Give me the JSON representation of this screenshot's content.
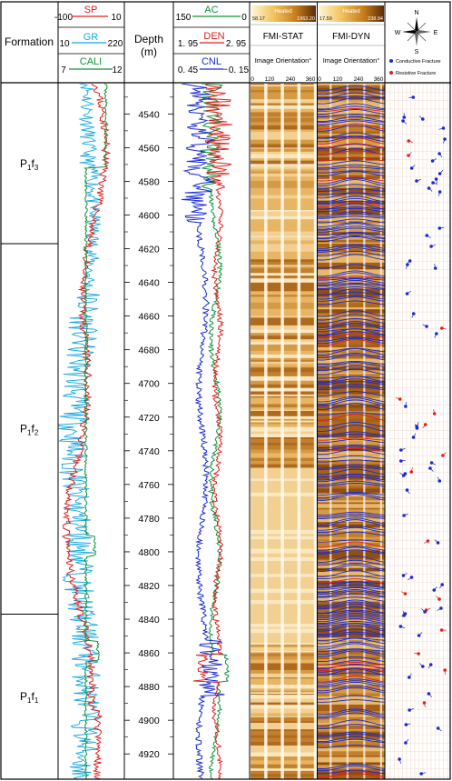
{
  "columns": {
    "formation_header": "Formation",
    "depth_header": "Depth\n(m)",
    "fmi_stat_title": "FMI-STAT",
    "fmi_dyn_title": "FMI-DYN",
    "image_orientation_label": "Image Orientation°",
    "orientation_ticks": [
      "0",
      "120",
      "240",
      "360"
    ]
  },
  "formations": [
    {
      "label_main": "P",
      "label_sub1": "1",
      "label_mid": "f",
      "label_sub2": "3",
      "top_depth": 4522,
      "bottom_depth": 4617
    },
    {
      "label_main": "P",
      "label_sub1": "1",
      "label_mid": "f",
      "label_sub2": "2",
      "top_depth": 4617,
      "bottom_depth": 4837
    },
    {
      "label_main": "P",
      "label_sub1": "1",
      "label_mid": "f",
      "label_sub2": "1",
      "top_depth": 4837,
      "bottom_depth": 4935
    }
  ],
  "track1_curves": [
    {
      "name": "SP",
      "left": "-100",
      "right": "10",
      "color": "#e0201b"
    },
    {
      "name": "GR",
      "left": "10",
      "right": "220",
      "color": "#19a8e0"
    },
    {
      "name": "CALI",
      "left": "7",
      "right": "12",
      "color": "#10913a"
    }
  ],
  "track2_curves": [
    {
      "name": "AC",
      "left": "150",
      "right": "0",
      "color": "#10913a"
    },
    {
      "name": "DEN",
      "left": "1. 95",
      "right": "2. 95",
      "color": "#e0201b"
    },
    {
      "name": "CNL",
      "left": "0. 45",
      "right": "－0. 15",
      "color": "#1a2ad0"
    }
  ],
  "color_scales": {
    "stat": {
      "title": "Heated",
      "min": "58.17",
      "max": "1963.20"
    },
    "dyn": {
      "title": "Heated",
      "min": "17.59",
      "max": "238.94"
    }
  },
  "depth_ticks": [
    "4540",
    "4560",
    "4580",
    "4600",
    "4620",
    "4640",
    "4660",
    "4680",
    "4700",
    "4720",
    "4740",
    "4760",
    "4780",
    "4800",
    "4820",
    "4840",
    "4860",
    "4880",
    "4900",
    "4920"
  ],
  "depth_range": [
    4522,
    4935
  ],
  "compass": {
    "n": "N",
    "s": "S",
    "e": "E",
    "w": "W"
  },
  "legend": {
    "conductive": {
      "label": "Conductive Fracture",
      "color": "#1a2ad0"
    },
    "resistive": {
      "label": "Resistive Fracture",
      "color": "#e0201b"
    }
  }
}
